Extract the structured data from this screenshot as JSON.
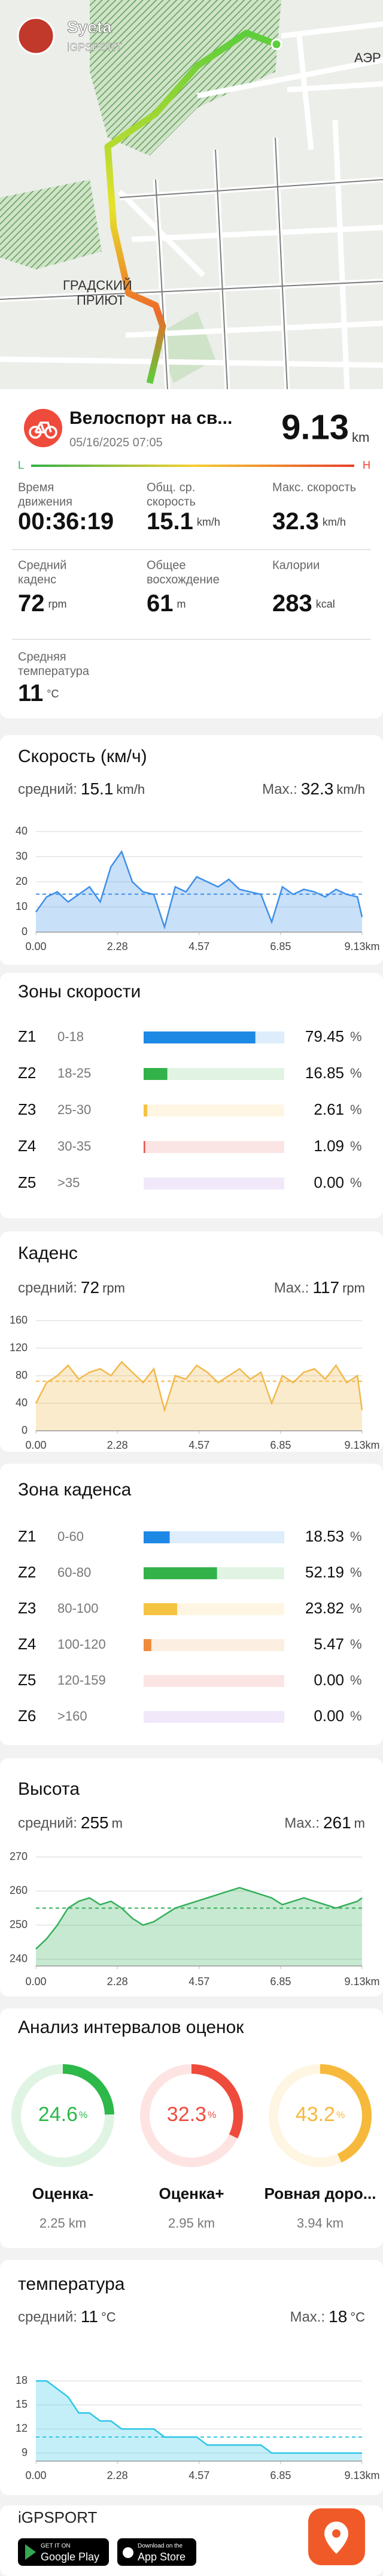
{
  "profile": {
    "name": "Syeta",
    "subtitle": "iGPSPORT"
  },
  "map": {
    "labels": [
      "АЭР",
      "ГРАДСКИЙ",
      "ПРИЮТ"
    ]
  },
  "activity": {
    "title": "Велоспорт на св...",
    "date": "05/16/2025 07:05",
    "distance": 9.13,
    "distance_unit": "km",
    "scale": [
      "L",
      "H"
    ]
  },
  "stats": [
    {
      "label": [
        "Время",
        "движения"
      ],
      "value": "00:36:19"
    },
    {
      "label": [
        "Общ. ср.",
        "скорость"
      ],
      "value": 15.1,
      "unit": "km/h"
    },
    {
      "label": [
        "Макс. скорость"
      ],
      "value": 32.3,
      "unit": "km/h"
    },
    {
      "label": [
        "Средний",
        "каденс"
      ],
      "value": 72,
      "unit": "rpm"
    },
    {
      "label": [
        "Общее",
        "восхождение"
      ],
      "value": 61,
      "unit": "m"
    },
    {
      "label": [
        "Калории"
      ],
      "value": 283,
      "unit": "kcal"
    },
    {
      "label": [
        "Средняя",
        "температура"
      ],
      "value": 11,
      "unit": "°C"
    }
  ],
  "chart_data": [
    {
      "type": "area",
      "title": "Скорость (км/ч)",
      "avg_label": "средний:",
      "average": 15.1,
      "max_label": "Max.:",
      "max": 32.3,
      "unit": "km/h",
      "color": "#3d8fe8",
      "x": [
        0,
        0.3,
        0.6,
        0.9,
        1.2,
        1.5,
        1.8,
        2.1,
        2.4,
        2.7,
        3,
        3.3,
        3.6,
        3.9,
        4.2,
        4.5,
        4.8,
        5.1,
        5.4,
        5.7,
        6,
        6.3,
        6.6,
        6.9,
        7.2,
        7.5,
        7.8,
        8.1,
        8.4,
        8.7,
        9,
        9.13
      ],
      "values": [
        8,
        14,
        16,
        12,
        15,
        18,
        12,
        26,
        32,
        20,
        16,
        15,
        2,
        18,
        16,
        22,
        20,
        18,
        21,
        17,
        16,
        15,
        4,
        18,
        15,
        17,
        16,
        14,
        17,
        15,
        14,
        6
      ],
      "xlim": [
        0,
        9.13
      ],
      "xticks": [
        {
          "value": 0,
          "label": "0.00"
        },
        2.28,
        4.57,
        6.85,
        {
          "value": 9.13,
          "label": "9.13km"
        }
      ],
      "ylim": [
        0,
        40
      ],
      "yticks": [
        0,
        10,
        20,
        30,
        40
      ]
    },
    {
      "type": "area",
      "title": "Каденс",
      "avg_label": "средний:",
      "average": 72,
      "max_label": "Max.:",
      "max": 117,
      "unit": "rpm",
      "color": "#f2b84b",
      "x": [
        0,
        0.3,
        0.6,
        0.9,
        1.2,
        1.5,
        1.8,
        2.1,
        2.4,
        2.7,
        3,
        3.3,
        3.6,
        3.9,
        4.2,
        4.5,
        4.8,
        5.1,
        5.4,
        5.7,
        6,
        6.3,
        6.6,
        6.9,
        7.2,
        7.5,
        7.8,
        8.1,
        8.4,
        8.7,
        9,
        9.13
      ],
      "values": [
        40,
        70,
        80,
        95,
        75,
        85,
        90,
        80,
        100,
        85,
        70,
        90,
        30,
        80,
        75,
        95,
        85,
        70,
        80,
        90,
        75,
        85,
        40,
        80,
        70,
        85,
        90,
        75,
        95,
        70,
        80,
        30
      ],
      "xlim": [
        0,
        9.13
      ],
      "xticks": [
        {
          "value": 0,
          "label": "0.00"
        },
        2.28,
        4.57,
        6.85,
        {
          "value": 9.13,
          "label": "9.13km"
        }
      ],
      "ylim": [
        0,
        160
      ],
      "yticks": [
        0,
        40,
        80,
        120,
        160
      ]
    },
    {
      "type": "area",
      "title": "Высота",
      "avg_label": "средний:",
      "average": 255,
      "max_label": "Max.:",
      "max": 261,
      "unit": "m",
      "color": "#35b05a",
      "x": [
        0,
        0.3,
        0.6,
        0.9,
        1.2,
        1.5,
        1.8,
        2.1,
        2.4,
        2.7,
        3,
        3.3,
        3.6,
        3.9,
        4.2,
        4.5,
        4.8,
        5.1,
        5.4,
        5.7,
        6,
        6.3,
        6.6,
        6.9,
        7.2,
        7.5,
        7.8,
        8.1,
        8.4,
        8.7,
        9,
        9.13
      ],
      "values": [
        243,
        246,
        250,
        255,
        257,
        258,
        256,
        257,
        255,
        252,
        250,
        251,
        253,
        255,
        256,
        257,
        258,
        259,
        260,
        261,
        260,
        259,
        258,
        256,
        257,
        258,
        257,
        256,
        255,
        256,
        257,
        258
      ],
      "xlim": [
        0,
        9.13
      ],
      "xticks": [
        {
          "value": 0,
          "label": "0.00"
        },
        2.28,
        4.57,
        6.85,
        {
          "value": 9.13,
          "label": "9.13km"
        }
      ],
      "ylim": [
        238,
        270
      ],
      "yticks": [
        240,
        250,
        260,
        270
      ]
    },
    {
      "type": "area",
      "title": "температура",
      "avg_label": "средний:",
      "average": 11.0,
      "avg_label_text": "11.0",
      "max_label": "Max.:",
      "max": 18.0,
      "max_text": "18.0",
      "unit": "°C",
      "color": "#2ec6e6",
      "x": [
        0,
        0.3,
        0.6,
        0.9,
        1.2,
        1.5,
        1.8,
        2.1,
        2.4,
        2.7,
        3,
        3.3,
        3.6,
        3.9,
        4.2,
        4.5,
        4.8,
        5.1,
        5.4,
        5.7,
        6,
        6.3,
        6.6,
        6.9,
        7.2,
        7.5,
        7.8,
        8.1,
        8.4,
        8.7,
        9,
        9.13
      ],
      "values": [
        18,
        18,
        17,
        16,
        14,
        14,
        13,
        13,
        12,
        12,
        12,
        12,
        11,
        11,
        11,
        11,
        10,
        10,
        10,
        10,
        10,
        10,
        9,
        9,
        9,
        9,
        9,
        9,
        9,
        9,
        9,
        9
      ],
      "xlim": [
        0,
        9.13
      ],
      "xticks": [
        {
          "value": 0,
          "label": "0.00"
        },
        2.28,
        4.57,
        6.85,
        {
          "value": 9.13,
          "label": "9.13km"
        }
      ],
      "ylim": [
        8,
        19.5
      ],
      "yticks": [
        9,
        12,
        15,
        18
      ]
    }
  ],
  "speed_zones": {
    "title": "Зоны скорости",
    "unit": "%",
    "xlim": [
      0,
      100
    ],
    "categories": [
      "Z1",
      "Z2",
      "Z3",
      "Z4",
      "Z5"
    ],
    "ranges": [
      "0-18",
      "18-25",
      "25-30",
      "30-35",
      ">35"
    ],
    "values": [
      79.45,
      16.85,
      2.61,
      1.09,
      0
    ],
    "value_labels": [
      "79.45",
      "16.85",
      "2.61",
      "1.09",
      "0.00"
    ],
    "colors": [
      "#1e88e5",
      "#34b24a",
      "#f5c342",
      "#e5534b",
      "#a06ad8"
    ]
  },
  "cadence_zones": {
    "title": "Зона каденса",
    "unit": "%",
    "xlim": [
      0,
      100
    ],
    "categories": [
      "Z1",
      "Z2",
      "Z3",
      "Z4",
      "Z5",
      "Z6"
    ],
    "ranges": [
      "0-60",
      "60-80",
      "80-100",
      "100-120",
      "120-159",
      ">160"
    ],
    "values": [
      18.53,
      52.19,
      23.82,
      5.47,
      0,
      0
    ],
    "value_labels": [
      "18.53",
      "52.19",
      "23.82",
      "5.47",
      "0.00",
      "0.00"
    ],
    "colors": [
      "#1e88e5",
      "#34b24a",
      "#f5c342",
      "#f08a3c",
      "#e5534b",
      "#a06ad8"
    ]
  },
  "intervals": {
    "title": "Анализ интервалов оценок",
    "unit": "%",
    "distance_unit": "km",
    "categories": [
      "Оценка-",
      "Оценка+",
      "Ровная доро..."
    ],
    "values": [
      24.6,
      32.3,
      43.2
    ],
    "distances": [
      2.25,
      2.95,
      3.94
    ],
    "colors": [
      "#2db84a",
      "#ef4b3c",
      "#f6b93b"
    ]
  },
  "footer": {
    "brand": "iGPSPORT",
    "google_play": [
      "GET IT ON",
      "Google Play"
    ],
    "app_store": [
      "Download on the",
      "App Store"
    ]
  }
}
